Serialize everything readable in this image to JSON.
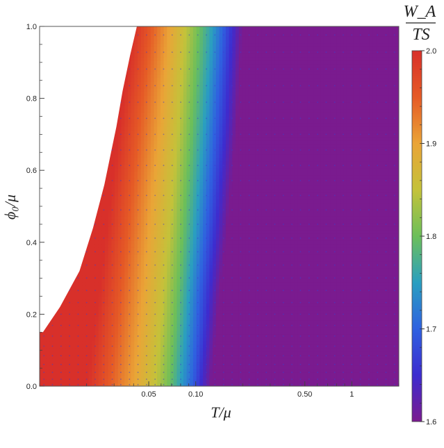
{
  "chart_data": {
    "type": "heatmap",
    "title": "",
    "xlabel": "T/μ",
    "ylabel": "ϕ₀/μ",
    "x_scale": "log",
    "xlim": [
      0.01,
      2.0
    ],
    "ylim": [
      0.0,
      1.0
    ],
    "x_ticks": [
      {
        "value": 0.05,
        "label": "0.05"
      },
      {
        "value": 0.1,
        "label": "0.10"
      },
      {
        "value": 0.5,
        "label": "0.50"
      },
      {
        "value": 1.0,
        "label": "1"
      }
    ],
    "y_ticks": [
      {
        "value": 0.0,
        "label": "0.0"
      },
      {
        "value": 0.2,
        "label": "0.2"
      },
      {
        "value": 0.4,
        "label": "0.4"
      },
      {
        "value": 0.6,
        "label": "0.6"
      },
      {
        "value": 0.8,
        "label": "0.8"
      },
      {
        "value": 1.0,
        "label": "1.0"
      }
    ],
    "colorbar": {
      "label_numerator": "W_A",
      "label_denominator": "TS",
      "range": [
        1.6,
        2.0
      ],
      "ticks": [
        {
          "value": 2.0,
          "label": "2.0"
        },
        {
          "value": 1.9,
          "label": "1.9"
        },
        {
          "value": 1.8,
          "label": "1.8"
        },
        {
          "value": 1.7,
          "label": "1.7"
        },
        {
          "value": 1.6,
          "label": "1.6"
        }
      ],
      "colormap": [
        "#7a1b8f",
        "#3d2ccf",
        "#2f61e0",
        "#2a9fc0",
        "#6cbf5a",
        "#c4c23a",
        "#eaa437",
        "#e55a26",
        "#d8302a"
      ]
    },
    "domain_boundary": [
      [
        0.0105,
        0.15
      ],
      [
        0.0135,
        0.22
      ],
      [
        0.018,
        0.32
      ],
      [
        0.022,
        0.44
      ],
      [
        0.026,
        0.56
      ],
      [
        0.029,
        0.66
      ],
      [
        0.031,
        0.72
      ],
      [
        0.034,
        0.82
      ],
      [
        0.038,
        0.92
      ],
      [
        0.042,
        1.0
      ]
    ],
    "contour_T_at_value": [
      {
        "value": 2.0,
        "T": [
          0.02,
          0.024,
          0.028,
          0.033,
          0.04
        ]
      },
      {
        "value": 1.95,
        "T": [
          0.028,
          0.033,
          0.038,
          0.044,
          0.052
        ]
      },
      {
        "value": 1.9,
        "T": [
          0.04,
          0.046,
          0.052,
          0.06,
          0.068
        ]
      },
      {
        "value": 1.85,
        "T": [
          0.055,
          0.062,
          0.07,
          0.078,
          0.086
        ]
      },
      {
        "value": 1.8,
        "T": [
          0.068,
          0.076,
          0.085,
          0.095,
          0.105
        ]
      },
      {
        "value": 1.75,
        "T": [
          0.08,
          0.09,
          0.102,
          0.115,
          0.128
        ]
      },
      {
        "value": 1.7,
        "T": [
          0.095,
          0.105,
          0.12,
          0.135,
          0.15
        ]
      },
      {
        "value": 1.65,
        "T": [
          0.108,
          0.122,
          0.14,
          0.158,
          0.172
        ]
      },
      {
        "value": 1.6,
        "T": [
          0.125,
          0.142,
          0.165,
          0.185,
          0.2
        ]
      }
    ],
    "contour_phi_levels": [
      0.0,
      0.25,
      0.5,
      0.75,
      1.0
    ],
    "background_value": 1.6
  }
}
